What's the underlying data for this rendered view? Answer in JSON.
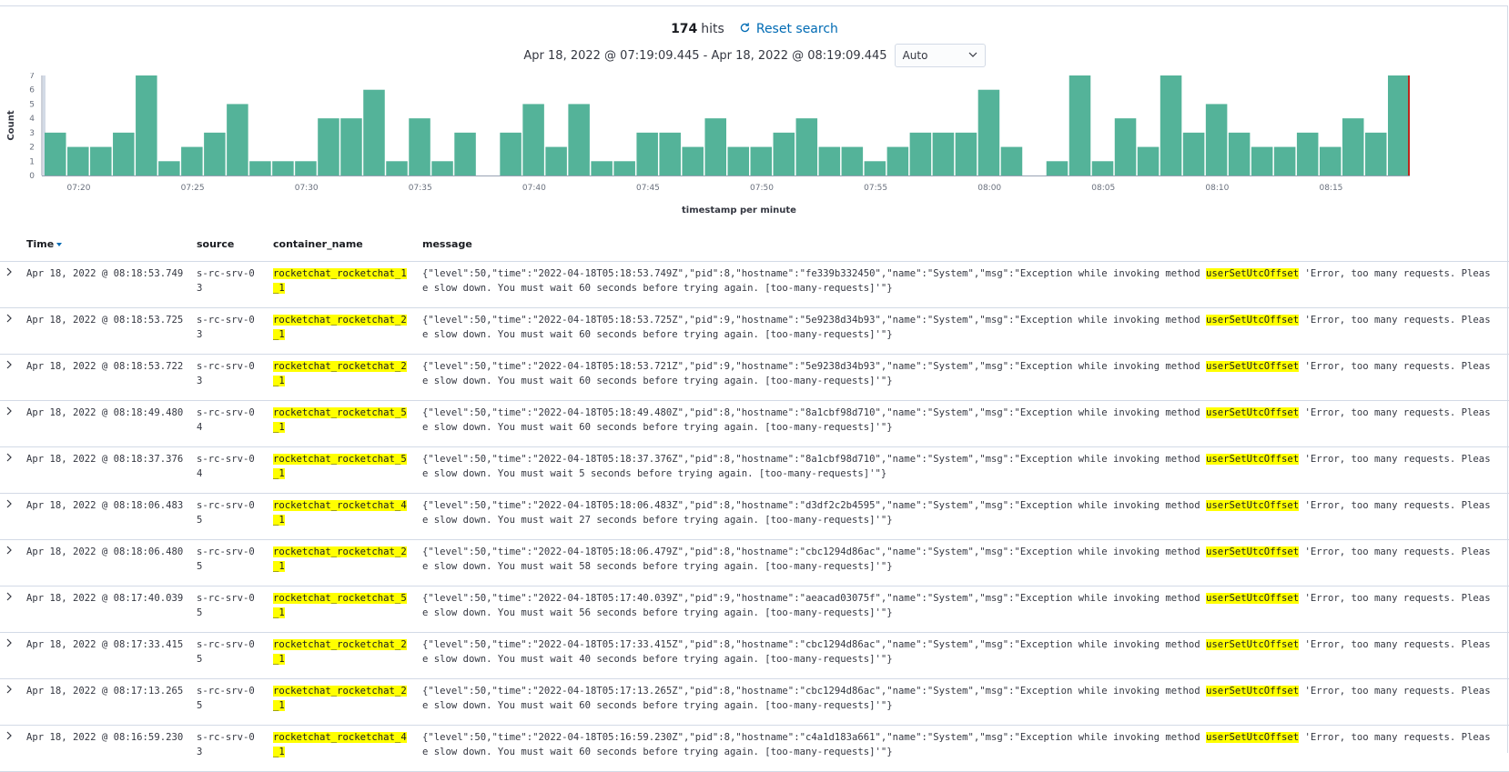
{
  "header": {
    "hits_count": "174",
    "hits_label": "hits",
    "reset_label": "Reset search",
    "time_range": "Apr 18, 2022 @ 07:19:09.445 - Apr 18, 2022 @ 08:19:09.445",
    "interval_value": "Auto"
  },
  "chart_data": {
    "type": "bar",
    "xlabel": "timestamp per minute",
    "ylabel": "Count",
    "ylim": [
      0,
      7
    ],
    "yticks": [
      0,
      1,
      2,
      3,
      4,
      5,
      6,
      7
    ],
    "xticks": [
      "07:20",
      "07:25",
      "07:30",
      "07:35",
      "07:40",
      "07:45",
      "07:50",
      "07:55",
      "08:00",
      "08:05",
      "08:10",
      "08:15"
    ],
    "bar_color": "#54b399",
    "categories": [
      "07:19",
      "07:20",
      "07:21",
      "07:22",
      "07:23",
      "07:24",
      "07:25",
      "07:26",
      "07:27",
      "07:28",
      "07:29",
      "07:30",
      "07:31",
      "07:32",
      "07:33",
      "07:34",
      "07:35",
      "07:36",
      "07:37",
      "07:38",
      "07:39",
      "07:40",
      "07:41",
      "07:42",
      "07:43",
      "07:44",
      "07:45",
      "07:46",
      "07:47",
      "07:48",
      "07:49",
      "07:50",
      "07:51",
      "07:52",
      "07:53",
      "07:54",
      "07:55",
      "07:56",
      "07:57",
      "07:58",
      "07:59",
      "08:00",
      "08:01",
      "08:02",
      "08:03",
      "08:04",
      "08:05",
      "08:06",
      "08:07",
      "08:08",
      "08:09",
      "08:10",
      "08:11",
      "08:12",
      "08:13",
      "08:14",
      "08:15",
      "08:16",
      "08:17",
      "08:18"
    ],
    "values": [
      3,
      2,
      2,
      3,
      7,
      1,
      2,
      3,
      5,
      1,
      1,
      1,
      4,
      4,
      6,
      1,
      4,
      1,
      3,
      0,
      3,
      5,
      2,
      5,
      1,
      1,
      3,
      3,
      2,
      4,
      2,
      2,
      3,
      4,
      2,
      2,
      1,
      2,
      3,
      3,
      3,
      6,
      2,
      0,
      1,
      7,
      1,
      4,
      2,
      7,
      3,
      5,
      3,
      2,
      2,
      3,
      2,
      4,
      3,
      7
    ]
  },
  "table": {
    "columns": {
      "time": "Time",
      "source": "source",
      "container": "container_name",
      "message": "message"
    },
    "highlight_term": "userSetUtcOffset",
    "rows": [
      {
        "time": "Apr 18, 2022 @ 08:18:53.749",
        "source_1": "s-rc-srv-0",
        "source_2": "3",
        "container_1": "rocketchat_rocketchat_1",
        "container_2": "_1",
        "msg_pre": "{\"level\":50,\"time\":\"2022-04-18T05:18:53.749Z\",\"pid\":8,\"hostname\":\"fe339b332450\",\"name\":\"System\",\"msg\":\"Exception while invoking method ",
        "msg_hl": "userSetUtcOffset",
        "msg_post": " 'Error, too many requests. Pleas",
        "msg_line2": "e slow down. You must wait 60 seconds before trying again. [too-many-requests]'\"}"
      },
      {
        "time": "Apr 18, 2022 @ 08:18:53.725",
        "source_1": "s-rc-srv-0",
        "source_2": "3",
        "container_1": "rocketchat_rocketchat_2",
        "container_2": "_1",
        "msg_pre": "{\"level\":50,\"time\":\"2022-04-18T05:18:53.725Z\",\"pid\":9,\"hostname\":\"5e9238d34b93\",\"name\":\"System\",\"msg\":\"Exception while invoking method ",
        "msg_hl": "userSetUtcOffset",
        "msg_post": " 'Error, too many requests. Pleas",
        "msg_line2": "e slow down. You must wait 60 seconds before trying again. [too-many-requests]'\"}"
      },
      {
        "time": "Apr 18, 2022 @ 08:18:53.722",
        "source_1": "s-rc-srv-0",
        "source_2": "3",
        "container_1": "rocketchat_rocketchat_2",
        "container_2": "_1",
        "msg_pre": "{\"level\":50,\"time\":\"2022-04-18T05:18:53.721Z\",\"pid\":9,\"hostname\":\"5e9238d34b93\",\"name\":\"System\",\"msg\":\"Exception while invoking method ",
        "msg_hl": "userSetUtcOffset",
        "msg_post": " 'Error, too many requests. Pleas",
        "msg_line2": "e slow down. You must wait 60 seconds before trying again. [too-many-requests]'\"}"
      },
      {
        "time": "Apr 18, 2022 @ 08:18:49.480",
        "source_1": "s-rc-srv-0",
        "source_2": "4",
        "container_1": "rocketchat_rocketchat_5",
        "container_2": "_1",
        "msg_pre": "{\"level\":50,\"time\":\"2022-04-18T05:18:49.480Z\",\"pid\":8,\"hostname\":\"8a1cbf98d710\",\"name\":\"System\",\"msg\":\"Exception while invoking method ",
        "msg_hl": "userSetUtcOffset",
        "msg_post": " 'Error, too many requests. Pleas",
        "msg_line2": "e slow down. You must wait 60 seconds before trying again. [too-many-requests]'\"}"
      },
      {
        "time": "Apr 18, 2022 @ 08:18:37.376",
        "source_1": "s-rc-srv-0",
        "source_2": "4",
        "container_1": "rocketchat_rocketchat_5",
        "container_2": "_1",
        "msg_pre": "{\"level\":50,\"time\":\"2022-04-18T05:18:37.376Z\",\"pid\":8,\"hostname\":\"8a1cbf98d710\",\"name\":\"System\",\"msg\":\"Exception while invoking method ",
        "msg_hl": "userSetUtcOffset",
        "msg_post": " 'Error, too many requests. Pleas",
        "msg_line2": "e slow down. You must wait 5 seconds before trying again. [too-many-requests]'\"}"
      },
      {
        "time": "Apr 18, 2022 @ 08:18:06.483",
        "source_1": "s-rc-srv-0",
        "source_2": "5",
        "container_1": "rocketchat_rocketchat_4",
        "container_2": "_1",
        "msg_pre": "{\"level\":50,\"time\":\"2022-04-18T05:18:06.483Z\",\"pid\":8,\"hostname\":\"d3df2c2b4595\",\"name\":\"System\",\"msg\":\"Exception while invoking method ",
        "msg_hl": "userSetUtcOffset",
        "msg_post": " 'Error, too many requests. Pleas",
        "msg_line2": "e slow down. You must wait 27 seconds before trying again. [too-many-requests]'\"}"
      },
      {
        "time": "Apr 18, 2022 @ 08:18:06.480",
        "source_1": "s-rc-srv-0",
        "source_2": "5",
        "container_1": "rocketchat_rocketchat_2",
        "container_2": "_1",
        "msg_pre": "{\"level\":50,\"time\":\"2022-04-18T05:18:06.479Z\",\"pid\":8,\"hostname\":\"cbc1294d86ac\",\"name\":\"System\",\"msg\":\"Exception while invoking method ",
        "msg_hl": "userSetUtcOffset",
        "msg_post": " 'Error, too many requests. Pleas",
        "msg_line2": "e slow down. You must wait 58 seconds before trying again. [too-many-requests]'\"}"
      },
      {
        "time": "Apr 18, 2022 @ 08:17:40.039",
        "source_1": "s-rc-srv-0",
        "source_2": "5",
        "container_1": "rocketchat_rocketchat_5",
        "container_2": "_1",
        "msg_pre": "{\"level\":50,\"time\":\"2022-04-18T05:17:40.039Z\",\"pid\":9,\"hostname\":\"aeacad03075f\",\"name\":\"System\",\"msg\":\"Exception while invoking method ",
        "msg_hl": "userSetUtcOffset",
        "msg_post": " 'Error, too many requests. Pleas",
        "msg_line2": "e slow down. You must wait 56 seconds before trying again. [too-many-requests]'\"}"
      },
      {
        "time": "Apr 18, 2022 @ 08:17:33.415",
        "source_1": "s-rc-srv-0",
        "source_2": "5",
        "container_1": "rocketchat_rocketchat_2",
        "container_2": "_1",
        "msg_pre": "{\"level\":50,\"time\":\"2022-04-18T05:17:33.415Z\",\"pid\":8,\"hostname\":\"cbc1294d86ac\",\"name\":\"System\",\"msg\":\"Exception while invoking method ",
        "msg_hl": "userSetUtcOffset",
        "msg_post": " 'Error, too many requests. Pleas",
        "msg_line2": "e slow down. You must wait 40 seconds before trying again. [too-many-requests]'\"}"
      },
      {
        "time": "Apr 18, 2022 @ 08:17:13.265",
        "source_1": "s-rc-srv-0",
        "source_2": "5",
        "container_1": "rocketchat_rocketchat_2",
        "container_2": "_1",
        "msg_pre": "{\"level\":50,\"time\":\"2022-04-18T05:17:13.265Z\",\"pid\":8,\"hostname\":\"cbc1294d86ac\",\"name\":\"System\",\"msg\":\"Exception while invoking method ",
        "msg_hl": "userSetUtcOffset",
        "msg_post": " 'Error, too many requests. Pleas",
        "msg_line2": "e slow down. You must wait 60 seconds before trying again. [too-many-requests]'\"}"
      },
      {
        "time": "Apr 18, 2022 @ 08:16:59.230",
        "source_1": "s-rc-srv-0",
        "source_2": "3",
        "container_1": "rocketchat_rocketchat_4",
        "container_2": "_1",
        "msg_pre": "{\"level\":50,\"time\":\"2022-04-18T05:16:59.230Z\",\"pid\":8,\"hostname\":\"c4a1d183a661\",\"name\":\"System\",\"msg\":\"Exception while invoking method ",
        "msg_hl": "userSetUtcOffset",
        "msg_post": " 'Error, too many requests. Pleas",
        "msg_line2": "e slow down. You must wait 60 seconds before trying again. [too-many-requests]'\"}"
      }
    ]
  }
}
